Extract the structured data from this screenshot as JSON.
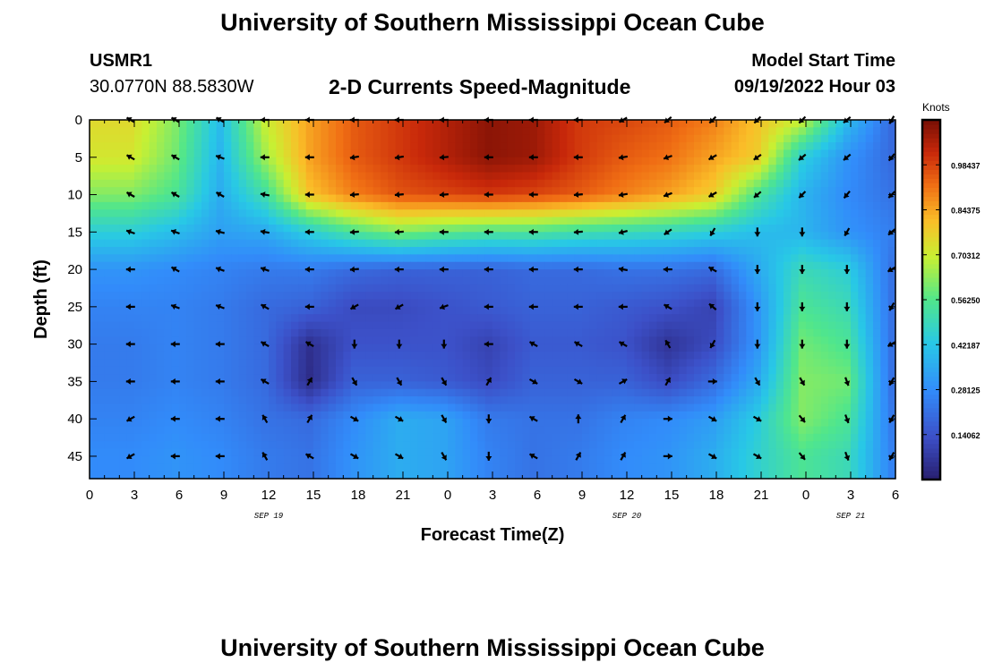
{
  "header": {
    "title": "University of Southern Mississippi Ocean Cube",
    "station": "USMR1",
    "coordinates": "30.0770N  88.5830W",
    "subtitle": "2-D Currents Speed-Magnitude",
    "model_start_label": "Model Start Time",
    "model_start_value": "09/19/2022 Hour 03"
  },
  "footer": {
    "title": "University of Southern Mississippi Ocean Cube"
  },
  "chart_data": {
    "type": "heatmap",
    "xlabel": "Forecast Time(Z)",
    "ylabel": "Depth (ft)",
    "x_tick_labels": [
      "0",
      "3",
      "6",
      "9",
      "12",
      "15",
      "18",
      "21",
      "0",
      "3",
      "6",
      "9",
      "12",
      "15",
      "18",
      "21",
      "0",
      "3",
      "6"
    ],
    "date_labels": [
      {
        "label": "SEP 19",
        "at_hour": 12
      },
      {
        "label": "SEP 20",
        "at_hour": 36
      },
      {
        "label": "SEP 21",
        "at_hour": 51
      }
    ],
    "xlim": [
      0,
      54
    ],
    "y_ticks": [
      0,
      5,
      10,
      15,
      20,
      25,
      30,
      35,
      40,
      45
    ],
    "ylim": [
      0,
      48
    ],
    "y_inverted": true,
    "colorbar": {
      "title": "Knots",
      "tick_labels": [
        "0.98437",
        "0.84375",
        "0.70312",
        "0.56250",
        "0.42187",
        "0.28125",
        "0.14062"
      ],
      "tick_values": [
        0.98437,
        0.84375,
        0.70312,
        0.5625,
        0.42187,
        0.28125,
        0.14062
      ],
      "range": [
        0,
        1.125
      ]
    },
    "arrow_times": [
      2.75,
      5.75,
      8.75,
      11.75,
      14.75,
      17.75,
      20.75,
      23.75,
      26.75,
      29.75,
      32.75,
      35.75,
      38.75,
      41.75,
      44.75,
      47.75,
      50.75,
      53.75
    ],
    "arrow_depths": [
      0,
      5,
      10,
      15,
      20,
      25,
      30,
      35,
      40,
      45
    ],
    "speed_grid": [
      [
        0.75,
        0.62,
        0.4,
        0.7,
        0.85,
        0.95,
        1.0,
        1.05,
        1.1,
        1.08,
        1.0,
        0.98,
        0.95,
        0.9,
        0.8,
        0.7,
        0.4,
        0.2
      ],
      [
        0.72,
        0.6,
        0.38,
        0.65,
        0.85,
        0.95,
        1.0,
        1.05,
        1.1,
        1.08,
        1.0,
        0.95,
        0.92,
        0.85,
        0.78,
        0.45,
        0.3,
        0.2
      ],
      [
        0.62,
        0.55,
        0.36,
        0.52,
        0.8,
        0.9,
        0.96,
        0.98,
        1.0,
        0.98,
        0.95,
        0.9,
        0.85,
        0.78,
        0.55,
        0.38,
        0.28,
        0.22
      ],
      [
        0.45,
        0.4,
        0.33,
        0.35,
        0.45,
        0.55,
        0.62,
        0.58,
        0.55,
        0.55,
        0.52,
        0.5,
        0.48,
        0.45,
        0.4,
        0.38,
        0.3,
        0.25
      ],
      [
        0.3,
        0.28,
        0.26,
        0.24,
        0.24,
        0.2,
        0.18,
        0.18,
        0.18,
        0.2,
        0.2,
        0.22,
        0.22,
        0.2,
        0.35,
        0.5,
        0.45,
        0.22
      ],
      [
        0.26,
        0.26,
        0.24,
        0.2,
        0.18,
        0.12,
        0.12,
        0.14,
        0.16,
        0.18,
        0.18,
        0.16,
        0.14,
        0.1,
        0.3,
        0.55,
        0.5,
        0.22
      ],
      [
        0.24,
        0.26,
        0.24,
        0.2,
        0.05,
        0.14,
        0.14,
        0.14,
        0.1,
        0.16,
        0.16,
        0.14,
        0.06,
        0.12,
        0.3,
        0.6,
        0.55,
        0.22
      ],
      [
        0.24,
        0.26,
        0.24,
        0.2,
        0.04,
        0.18,
        0.18,
        0.16,
        0.12,
        0.18,
        0.18,
        0.18,
        0.12,
        0.2,
        0.35,
        0.62,
        0.6,
        0.22
      ],
      [
        0.26,
        0.28,
        0.26,
        0.22,
        0.2,
        0.28,
        0.36,
        0.34,
        0.24,
        0.22,
        0.22,
        0.26,
        0.28,
        0.32,
        0.44,
        0.62,
        0.55,
        0.24
      ],
      [
        0.28,
        0.3,
        0.28,
        0.24,
        0.22,
        0.3,
        0.36,
        0.34,
        0.26,
        0.22,
        0.24,
        0.28,
        0.3,
        0.36,
        0.46,
        0.55,
        0.5,
        0.26
      ]
    ],
    "arrow_directions_deg": [
      [
        300,
        300,
        300,
        270,
        270,
        270,
        270,
        270,
        270,
        270,
        270,
        240,
        230,
        225,
        225,
        225,
        230,
        210
      ],
      [
        300,
        300,
        290,
        270,
        270,
        260,
        260,
        265,
        270,
        270,
        270,
        260,
        250,
        240,
        235,
        230,
        230,
        220
      ],
      [
        300,
        300,
        300,
        280,
        270,
        265,
        265,
        265,
        270,
        270,
        265,
        260,
        250,
        240,
        230,
        225,
        220,
        225
      ],
      [
        290,
        290,
        285,
        280,
        270,
        265,
        265,
        270,
        270,
        270,
        265,
        255,
        235,
        210,
        180,
        180,
        210,
        230
      ],
      [
        270,
        300,
        290,
        290,
        270,
        265,
        270,
        270,
        270,
        270,
        270,
        280,
        270,
        300,
        180,
        180,
        180,
        240
      ],
      [
        270,
        290,
        290,
        300,
        270,
        240,
        240,
        250,
        270,
        270,
        270,
        270,
        300,
        310,
        180,
        180,
        180,
        210
      ],
      [
        270,
        270,
        270,
        300,
        300,
        180,
        180,
        180,
        270,
        300,
        300,
        300,
        330,
        210,
        180,
        180,
        180,
        240
      ],
      [
        270,
        270,
        270,
        300,
        30,
        150,
        150,
        150,
        30,
        120,
        120,
        60,
        30,
        90,
        150,
        150,
        160,
        210
      ],
      [
        240,
        270,
        270,
        330,
        30,
        120,
        120,
        150,
        180,
        300,
        0,
        30,
        90,
        120,
        120,
        140,
        160,
        210
      ],
      [
        240,
        270,
        270,
        330,
        300,
        120,
        120,
        150,
        180,
        300,
        30,
        30,
        90,
        120,
        120,
        140,
        160,
        210
      ]
    ]
  }
}
